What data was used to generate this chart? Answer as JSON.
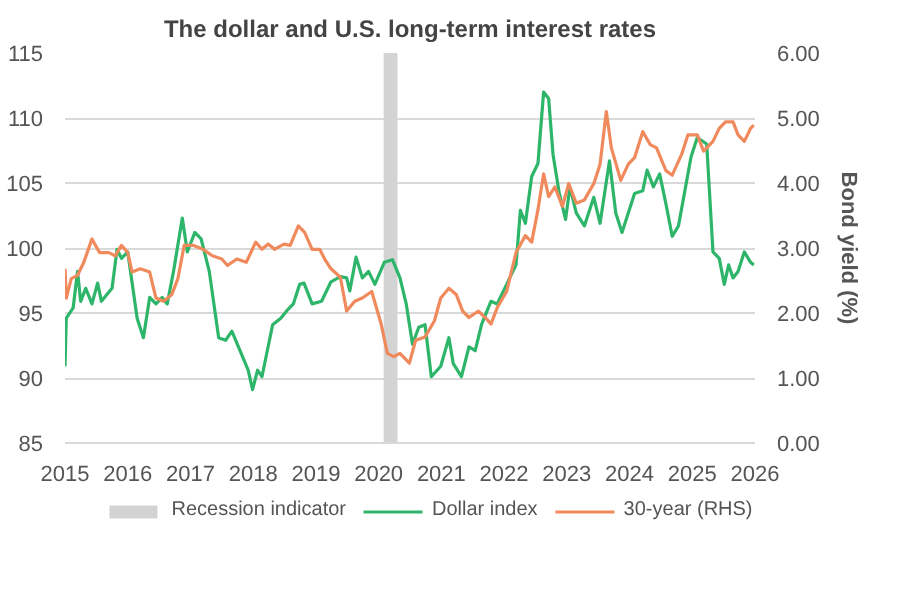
{
  "chart_data": {
    "type": "line",
    "title": "The dollar and U.S. long-term interest rates",
    "y2label": "Bond yield (%)",
    "xlim": [
      2015,
      2026
    ],
    "xticks": [
      2015,
      2016,
      2017,
      2018,
      2019,
      2020,
      2021,
      2022,
      2023,
      2024,
      2025,
      2026
    ],
    "ylim": [
      85,
      115
    ],
    "yticks": [
      85,
      90,
      95,
      100,
      105,
      110,
      115
    ],
    "y2lim": [
      0,
      6
    ],
    "y2ticks": [
      {
        "value": 0,
        "label": "0.00"
      },
      {
        "value": 1,
        "label": "1.00"
      },
      {
        "value": 2,
        "label": "2.00"
      },
      {
        "value": 3,
        "label": "3.00"
      },
      {
        "value": 4,
        "label": "4.00"
      },
      {
        "value": 5,
        "label": "5.00"
      },
      {
        "value": 6,
        "label": "6.00"
      }
    ],
    "grid": "y",
    "legend": "bottom",
    "line_style": "solid",
    "bands": [
      {
        "axis": "x",
        "from": 2020.08,
        "to": 2020.3,
        "label": "Recession indicator",
        "color": "#d3d3d3"
      }
    ],
    "series": [
      {
        "name": "Dollar index",
        "color": "#2db56a",
        "x": [
          2015.0,
          2015.02,
          2015.13,
          2015.2,
          2015.25,
          2015.33,
          2015.43,
          2015.52,
          2015.58,
          2015.75,
          2015.83,
          2015.9,
          2016.0,
          2016.15,
          2016.25,
          2016.35,
          2016.45,
          2016.55,
          2016.63,
          2016.73,
          2016.87,
          2016.95,
          2017.07,
          2017.17,
          2017.3,
          2017.45,
          2017.56,
          2017.66,
          2017.79,
          2017.92,
          2017.99,
          2018.07,
          2018.14,
          2018.31,
          2018.44,
          2018.54,
          2018.64,
          2018.74,
          2018.81,
          2018.94,
          2019.09,
          2019.24,
          2019.39,
          2019.49,
          2019.54,
          2019.64,
          2019.74,
          2019.84,
          2019.94,
          2020.09,
          2020.22,
          2020.34,
          2020.44,
          2020.54,
          2020.64,
          2020.74,
          2020.84,
          2020.99,
          2021.12,
          2021.19,
          2021.32,
          2021.44,
          2021.54,
          2021.64,
          2021.79,
          2021.89,
          2022.04,
          2022.19,
          2022.26,
          2022.34,
          2022.44,
          2022.54,
          2022.63,
          2022.71,
          2022.78,
          2022.88,
          2022.98,
          2023.05,
          2023.15,
          2023.28,
          2023.43,
          2023.53,
          2023.68,
          2023.78,
          2023.88,
          2023.98,
          2024.08,
          2024.21,
          2024.28,
          2024.38,
          2024.48,
          2024.58,
          2024.68,
          2024.78,
          2024.98,
          2025.08,
          2025.23,
          2025.33,
          2025.43,
          2025.51,
          2025.58,
          2025.65,
          2025.73,
          2025.83,
          2025.93,
          2025.98
        ],
        "values": [
          90.9,
          94.6,
          95.4,
          98.2,
          95.9,
          96.9,
          95.7,
          97.3,
          95.9,
          96.9,
          99.9,
          99.2,
          99.7,
          94.6,
          93.1,
          96.2,
          95.7,
          96.2,
          95.7,
          98.2,
          102.3,
          99.7,
          101.2,
          100.7,
          98.2,
          93.1,
          92.9,
          93.6,
          92.1,
          90.6,
          89.1,
          90.6,
          90.1,
          94.1,
          94.6,
          95.2,
          95.7,
          97.2,
          97.3,
          95.7,
          95.9,
          97.4,
          97.8,
          97.7,
          96.7,
          99.3,
          97.7,
          98.2,
          97.2,
          98.9,
          99.1,
          97.7,
          95.7,
          92.6,
          93.9,
          94.1,
          90.1,
          90.9,
          93.1,
          91.1,
          90.1,
          92.4,
          92.1,
          94.1,
          95.9,
          95.7,
          97.2,
          98.7,
          102.9,
          101.9,
          105.5,
          106.5,
          112.0,
          111.5,
          107.2,
          104.2,
          102.2,
          104.7,
          102.7,
          101.7,
          103.9,
          101.9,
          106.7,
          102.7,
          101.2,
          102.7,
          104.2,
          104.4,
          106.0,
          104.7,
          105.7,
          103.4,
          100.9,
          101.7,
          107.0,
          108.5,
          108.0,
          99.7,
          99.2,
          97.2,
          98.7,
          97.7,
          98.2,
          99.7,
          98.9,
          98.7
        ]
      },
      {
        "name": "30-year (RHS)",
        "color": "#f08a5d",
        "axis": "y2",
        "x": [
          2015.0,
          2015.02,
          2015.1,
          2015.2,
          2015.3,
          2015.43,
          2015.55,
          2015.7,
          2015.8,
          2015.9,
          2016.0,
          2016.07,
          2016.2,
          2016.35,
          2016.45,
          2016.57,
          2016.7,
          2016.8,
          2016.9,
          2017.05,
          2017.2,
          2017.35,
          2017.5,
          2017.59,
          2017.74,
          2017.89,
          2018.04,
          2018.14,
          2018.24,
          2018.34,
          2018.49,
          2018.59,
          2018.72,
          2018.82,
          2018.94,
          2019.06,
          2019.14,
          2019.24,
          2019.39,
          2019.49,
          2019.62,
          2019.74,
          2019.89,
          2020.04,
          2020.14,
          2020.24,
          2020.34,
          2020.49,
          2020.59,
          2020.74,
          2020.89,
          2020.99,
          2021.12,
          2021.24,
          2021.34,
          2021.44,
          2021.59,
          2021.72,
          2021.79,
          2021.89,
          2022.04,
          2022.19,
          2022.34,
          2022.44,
          2022.54,
          2022.63,
          2022.71,
          2022.81,
          2022.93,
          2023.03,
          2023.15,
          2023.28,
          2023.43,
          2023.53,
          2023.63,
          2023.71,
          2023.86,
          2023.98,
          2024.08,
          2024.21,
          2024.33,
          2024.43,
          2024.58,
          2024.68,
          2024.83,
          2024.93,
          2025.08,
          2025.18,
          2025.33,
          2025.43,
          2025.53,
          2025.65,
          2025.73,
          2025.83,
          2025.93,
          2025.98
        ],
        "values": [
          2.68,
          2.23,
          2.53,
          2.58,
          2.78,
          3.14,
          2.93,
          2.93,
          2.88,
          3.04,
          2.93,
          2.63,
          2.68,
          2.63,
          2.23,
          2.18,
          2.28,
          2.53,
          3.04,
          3.04,
          2.98,
          2.88,
          2.83,
          2.73,
          2.83,
          2.78,
          3.09,
          2.98,
          3.06,
          2.98,
          3.06,
          3.04,
          3.34,
          3.24,
          2.98,
          2.98,
          2.83,
          2.68,
          2.55,
          2.03,
          2.18,
          2.23,
          2.33,
          1.83,
          1.38,
          1.33,
          1.38,
          1.23,
          1.58,
          1.63,
          1.88,
          2.23,
          2.38,
          2.28,
          2.03,
          1.93,
          2.03,
          1.91,
          1.83,
          2.08,
          2.33,
          2.93,
          3.19,
          3.09,
          3.59,
          4.14,
          3.79,
          3.94,
          3.64,
          3.99,
          3.69,
          3.74,
          3.99,
          4.29,
          5.1,
          4.54,
          4.04,
          4.29,
          4.39,
          4.79,
          4.59,
          4.54,
          4.19,
          4.12,
          4.44,
          4.74,
          4.74,
          4.49,
          4.64,
          4.84,
          4.94,
          4.94,
          4.74,
          4.64,
          4.84,
          4.89
        ]
      }
    ]
  }
}
